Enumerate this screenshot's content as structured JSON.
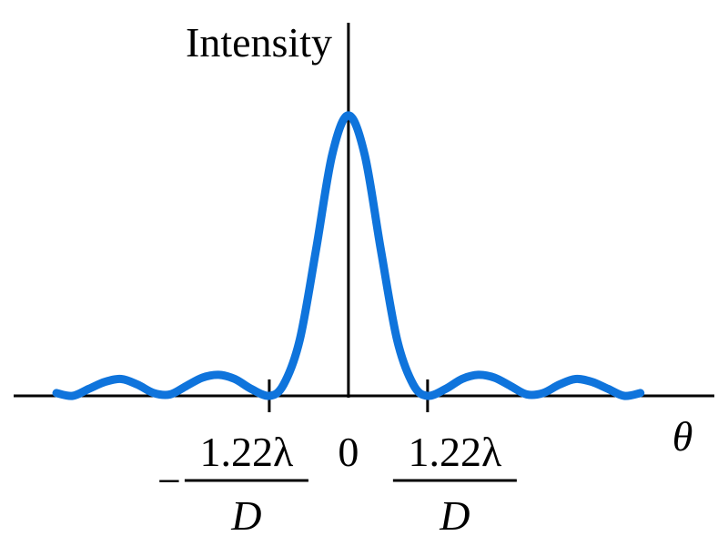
{
  "chart_data": {
    "type": "line",
    "y_label": "Intensity",
    "x_label": "θ",
    "x": [
      -4.5,
      -4.25,
      -4,
      -3.75,
      -3.5,
      -3.25,
      -3,
      -2.75,
      -2.5,
      -2.25,
      -2,
      -1.75,
      -1.5,
      -1.22,
      -1,
      -0.75,
      -0.5,
      -0.25,
      0,
      0.25,
      0.5,
      0.75,
      1,
      1.22,
      1.5,
      1.75,
      2,
      2.25,
      2.5,
      2.75,
      3,
      3.25,
      3.5,
      3.75,
      4,
      4.25,
      4.5
    ],
    "series": [
      {
        "color": "#0f74dc",
        "values": [
          0.01,
          0.0,
          0.025,
          0.05,
          0.06,
          0.04,
          0.01,
          0.005,
          0.035,
          0.065,
          0.075,
          0.06,
          0.025,
          0,
          0.04,
          0.2,
          0.52,
          0.86,
          1,
          0.86,
          0.52,
          0.2,
          0.04,
          0,
          0.025,
          0.06,
          0.075,
          0.065,
          0.035,
          0.005,
          0.01,
          0.04,
          0.06,
          0.05,
          0.025,
          0.0,
          0.01
        ]
      }
    ],
    "xlim": [
      -5.16,
      5.64
    ],
    "ylim": [
      0,
      1.33
    ],
    "xticks": [
      {
        "value": -1.22,
        "label": {
          "sign": "−",
          "numerator": "1.22λ",
          "denominator": "D"
        }
      },
      0,
      {
        "value": 1.22,
        "label": {
          "numerator": "1.22λ",
          "denominator": "D"
        }
      }
    ]
  }
}
